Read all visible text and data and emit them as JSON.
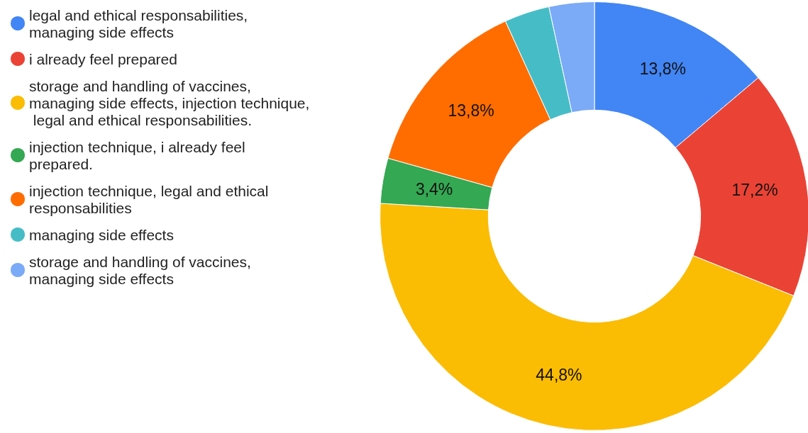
{
  "chart_data": {
    "type": "donut",
    "categories": [
      "legal and ethical responsabilities, managing side effects",
      "i already feel prepared",
      "storage and handling of vaccines, managing side effects, injection technique, legal and ethical responsabilities.",
      "injection technique, i already feel prepared.",
      "injection technique, legal and ethical responsabilities",
      "managing side effects",
      "storage and handling of vaccines, managing side effects"
    ],
    "values": [
      13.8,
      17.2,
      44.8,
      3.4,
      13.8,
      3.4,
      3.4
    ],
    "colors": [
      "#4285f4",
      "#ea4335",
      "#fbbc04",
      "#34a853",
      "#ff6d01",
      "#46bdc6",
      "#7baaf7"
    ],
    "value_labels": [
      "13,8%",
      "17,2%",
      "44,8%",
      "3,4%",
      "13,8%",
      null,
      null
    ],
    "legend": "left"
  }
}
